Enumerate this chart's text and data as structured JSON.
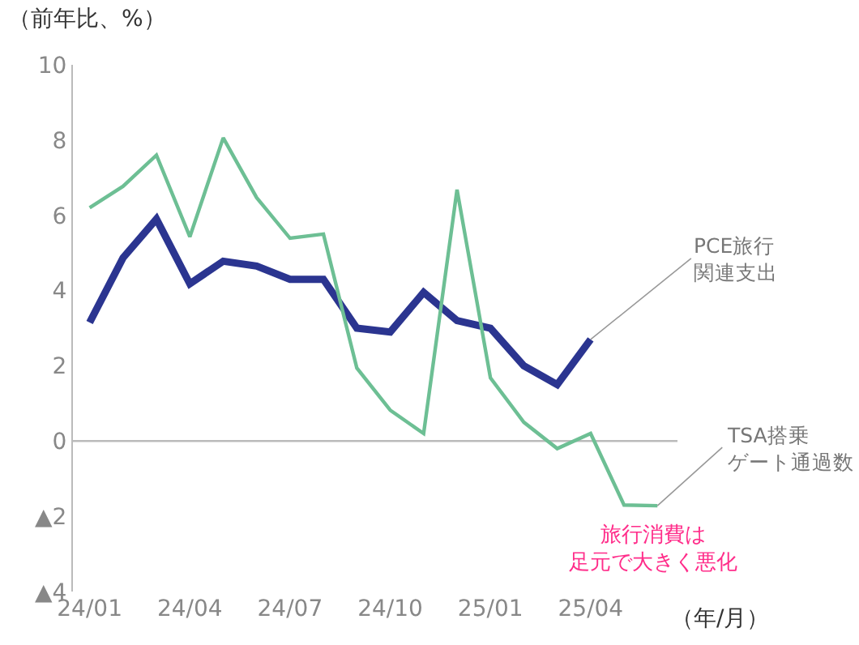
{
  "chart_data": {
    "type": "line",
    "ylabel": "（前年比、%）",
    "xlabel": "（年/月）",
    "categories": [
      "24/01",
      null,
      null,
      "24/04",
      null,
      null,
      "24/07",
      null,
      null,
      "24/10",
      null,
      null,
      "25/01",
      null,
      null,
      "25/04",
      null,
      null
    ],
    "series": [
      {
        "name": "PCE旅行関連支出",
        "color": "#2b3590",
        "values": [
          3.15,
          4.87,
          5.9,
          4.18,
          4.78,
          4.65,
          4.3,
          4.3,
          3.0,
          2.9,
          3.95,
          3.2,
          3.0,
          2.0,
          1.5,
          2.7,
          null,
          null
        ]
      },
      {
        "name": "TSA搭乗ゲート通過数",
        "color": "#6dbf94",
        "values": [
          6.2,
          6.77,
          7.6,
          5.43,
          8.06,
          6.47,
          5.39,
          5.5,
          1.94,
          0.82,
          0.2,
          6.68,
          1.68,
          0.5,
          -0.2,
          0.2,
          -1.7,
          -1.72
        ]
      }
    ],
    "ylim": [
      -4,
      10
    ],
    "yticks": [
      {
        "value": -4,
        "label": "▲4"
      },
      {
        "value": -2,
        "label": "▲2"
      },
      0,
      2,
      4,
      6,
      8,
      10
    ],
    "annotations": [
      "旅行消費は足元で大きく悪化"
    ],
    "ref_lines": [
      {
        "axis": "y",
        "value": 0,
        "color": "#bbbbbb"
      }
    ],
    "grid": false,
    "legend": false,
    "marker": "none"
  }
}
